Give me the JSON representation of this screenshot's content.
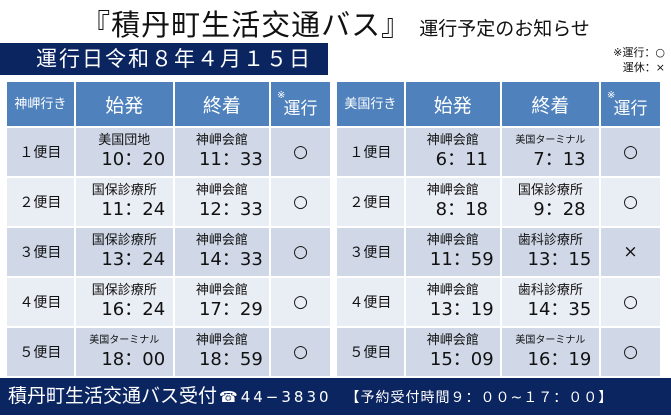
{
  "title": {
    "main": "『積丹町生活交通バス』",
    "sub": "運行予定のお知らせ"
  },
  "date_label": "運行日令和８年４月１５日",
  "legend": {
    "line1": "※運行：○",
    "line2": "運休：×"
  },
  "tables": [
    {
      "direction": "神岬行き",
      "headers": {
        "depart": "始発",
        "arrive": "終着",
        "op_mark": "※",
        "op": "運行"
      },
      "rows": [
        {
          "trip": "１便目",
          "from": "美国団地",
          "dep": "10：20",
          "to": "神岬会館",
          "arr": "11：33",
          "status": "○"
        },
        {
          "trip": "２便目",
          "from": "国保診療所",
          "dep": "11：24",
          "to": "神岬会館",
          "arr": "12：33",
          "status": "○"
        },
        {
          "trip": "３便目",
          "from": "国保診療所",
          "dep": "13：24",
          "to": "神岬会館",
          "arr": "14：33",
          "status": "○"
        },
        {
          "trip": "４便目",
          "from": "国保診療所",
          "dep": "16：24",
          "to": "神岬会館",
          "arr": "17：29",
          "status": "○"
        },
        {
          "trip": "５便目",
          "from": "美国ターミナル",
          "dep": "18：00",
          "to": "神岬会館",
          "arr": "18：59",
          "status": "○"
        }
      ]
    },
    {
      "direction": "美国行き",
      "headers": {
        "depart": "始発",
        "arrive": "終着",
        "op_mark": "※",
        "op": "運行"
      },
      "rows": [
        {
          "trip": "１便目",
          "from": "神岬会館",
          "dep": "6：11",
          "to": "美国ターミナル",
          "arr": "7：13",
          "status": "○"
        },
        {
          "trip": "２便目",
          "from": "神岬会館",
          "dep": "8：18",
          "to": "国保診療所",
          "arr": "9：28",
          "status": "○"
        },
        {
          "trip": "３便目",
          "from": "神岬会館",
          "dep": "11：59",
          "to": "歯科診療所",
          "arr": "13：15",
          "status": "×"
        },
        {
          "trip": "４便目",
          "from": "神岬会館",
          "dep": "13：19",
          "to": "歯科診療所",
          "arr": "14：35",
          "status": "○"
        },
        {
          "trip": "５便目",
          "from": "神岬会館",
          "dep": "15：09",
          "to": "美国ターミナル",
          "arr": "16：19",
          "status": "○"
        }
      ]
    }
  ],
  "footer": {
    "name": "積丹町生活交通バス受付",
    "tel_icon": "phone-icon",
    "tel": "☎44−3830",
    "hours": "【予約受付時間９：００~１７：００】"
  }
}
